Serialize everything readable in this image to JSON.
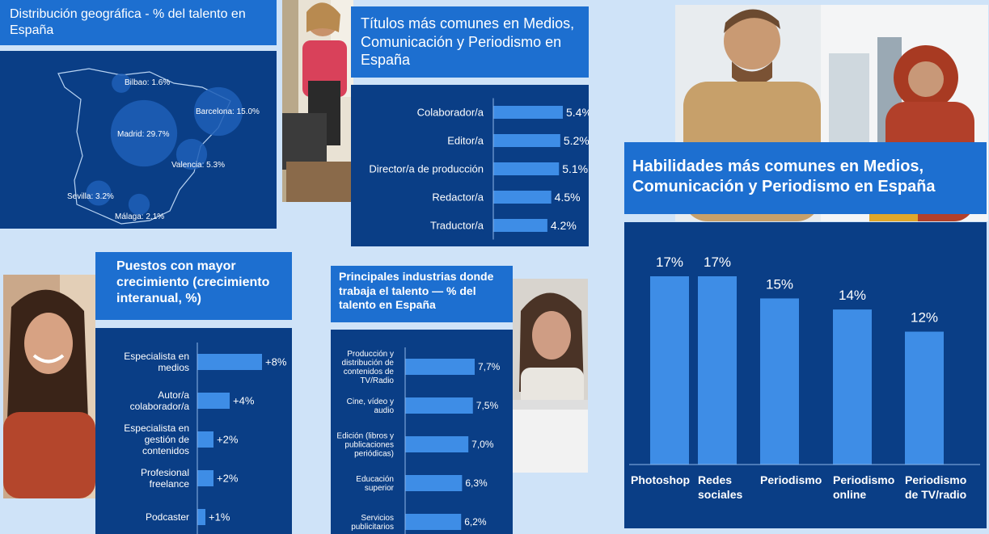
{
  "colors": {
    "background": "#cfe3f8",
    "panel": "#0a3e86",
    "title_bar": "#1d6fd0",
    "bar": "#3e8de6",
    "text": "#ffffff"
  },
  "map_panel": {
    "title": "Distribución geográfica - % del talento en España",
    "cities": [
      {
        "name": "Bilbao",
        "value": 1.6,
        "label": "Bilbao: 1.6%"
      },
      {
        "name": "Barcelona",
        "value": 15.0,
        "label": "Barcelona: 15.0%"
      },
      {
        "name": "Madrid",
        "value": 29.7,
        "label": "Madrid: 29.7%"
      },
      {
        "name": "Valencia",
        "value": 5.3,
        "label": "Valencia: 5.3%"
      },
      {
        "name": "Sevilla",
        "value": 3.2,
        "label": "Sevilla: 3.2%"
      },
      {
        "name": "Málaga",
        "value": 2.1,
        "label": "Málaga: 2.1%"
      }
    ]
  },
  "photos": [
    {
      "name": "photo-woman-coffee",
      "icon": "person-photo"
    },
    {
      "name": "photo-two-colleagues",
      "icon": "people-photo"
    },
    {
      "name": "photo-smiling-woman",
      "icon": "person-photo"
    },
    {
      "name": "photo-woman-laptop",
      "icon": "person-photo"
    }
  ],
  "chart_data": [
    {
      "id": "titles",
      "type": "bar",
      "orientation": "horizontal",
      "title": "Títulos más comunes en Medios, Comunicación y Periodismo en España",
      "categories": [
        "Colaborador/a",
        "Editor/a",
        "Director/a de producción",
        "Redactor/a",
        "Traductor/a"
      ],
      "values": [
        5.4,
        5.2,
        5.1,
        4.5,
        4.2
      ],
      "value_labels": [
        "5.4%",
        "5.2%",
        "5.1%",
        "4.5%",
        "4.2%"
      ],
      "xlim": [
        0,
        5.4
      ],
      "unit": "%"
    },
    {
      "id": "growth",
      "type": "bar",
      "orientation": "horizontal",
      "title": "Puestos con mayor crecimiento (crecimiento interanual, %)",
      "categories": [
        "Especialista en medios",
        "Autor/a colaborador/a",
        "Especialista en gestión de contenidos",
        "Profesional freelance",
        "Podcaster"
      ],
      "values": [
        8,
        4,
        2,
        2,
        1
      ],
      "value_labels": [
        "+8%",
        "+4%",
        "+2%",
        "+2%",
        "+1%"
      ],
      "xlim": [
        0,
        8
      ],
      "unit": "%"
    },
    {
      "id": "industries",
      "type": "bar",
      "orientation": "horizontal",
      "title": "Principales industrias donde trabaja el talento — % del talento en España",
      "categories": [
        "Producción y distribución de contenidos de TV/Radio",
        "Cine, vídeo y audio",
        "Edición (libros y publicaciones periódicas)",
        "Educación superior",
        "Servicios publicitarios"
      ],
      "values": [
        7.7,
        7.5,
        7.0,
        6.3,
        6.2
      ],
      "value_labels": [
        "7,7%",
        "7,5%",
        "7,0%",
        "6,3%",
        "6,2%"
      ],
      "xlim": [
        0,
        7.7
      ],
      "unit": "%"
    },
    {
      "id": "skills",
      "type": "bar",
      "orientation": "vertical",
      "title": "Habilidades más comunes en Medios, Comunicación y Periodismo en España",
      "categories": [
        "Photoshop",
        "Redes sociales",
        "Periodismo",
        "Periodismo online",
        "Periodismo de TV/radio"
      ],
      "values": [
        17,
        17,
        15,
        14,
        12
      ],
      "value_labels": [
        "17%",
        "17%",
        "15%",
        "14%",
        "12%"
      ],
      "ylim": [
        0,
        17
      ],
      "unit": "%"
    }
  ]
}
